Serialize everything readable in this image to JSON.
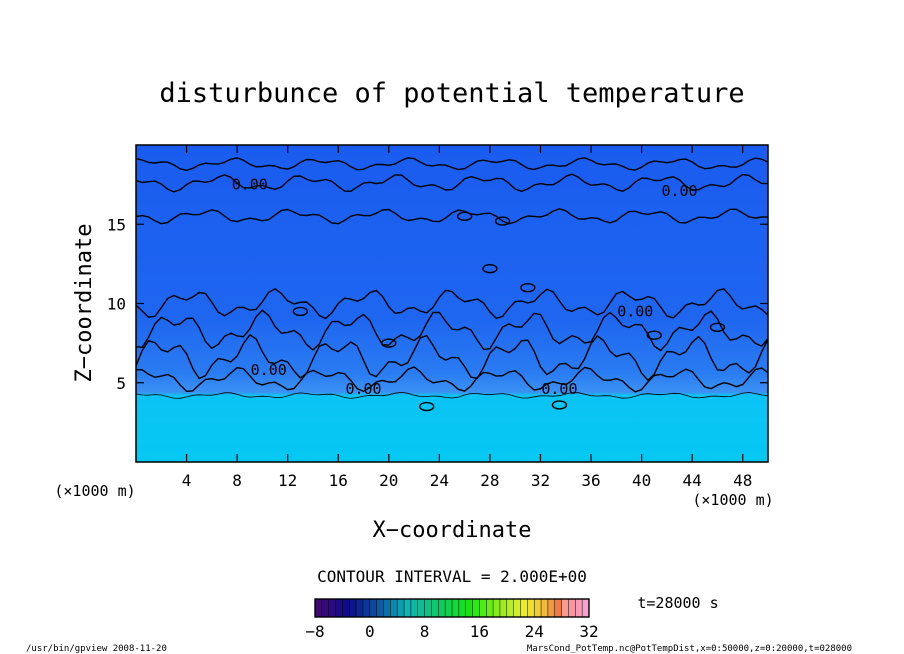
{
  "chart_data": {
    "type": "heatmap",
    "title": "disturbunce of potential temperature",
    "xlabel": "X−coordinate",
    "ylabel": "Z−coordinate",
    "x_unit_left": "(×1000 m)",
    "x_unit_right": "(×1000 m)",
    "xlim": [
      0,
      50
    ],
    "ylim": [
      0,
      20
    ],
    "x_ticks": [
      4,
      8,
      12,
      16,
      20,
      24,
      28,
      32,
      36,
      40,
      44,
      48
    ],
    "y_ticks": [
      5,
      10,
      15
    ],
    "contour_labels": [
      {
        "text": "0.00",
        "x": 9,
        "z": 17.5
      },
      {
        "text": "0.00",
        "x": 43,
        "z": 17.1
      },
      {
        "text": "0.00",
        "x": 39.5,
        "z": 9.5
      },
      {
        "text": "0.00",
        "x": 10.5,
        "z": 5.8
      },
      {
        "text": "0.00",
        "x": 18,
        "z": 4.6
      },
      {
        "text": "0.00",
        "x": 33.5,
        "z": 4.6
      }
    ],
    "contour_interval_text": "CONTOUR INTERVAL = 2.000E+00",
    "colorbar": {
      "min": -8,
      "max": 32,
      "ticks": [
        "−8",
        "0",
        "8",
        "16",
        "24",
        "32"
      ]
    },
    "time_label": "t=28000 s",
    "grid": false,
    "legend": "colorbar-bottom"
  },
  "footer": {
    "left": "/usr/bin/gpview   2008-11-20",
    "right": "MarsCond_PotTemp.nc@PotTempDist,x=0:50000,z=0:20000,t=028000"
  },
  "colors": {
    "upper_field": "#1b5ff0",
    "mid_field": "#2a7af3",
    "lower_field": "#06c6f4",
    "contour": "#000000"
  }
}
